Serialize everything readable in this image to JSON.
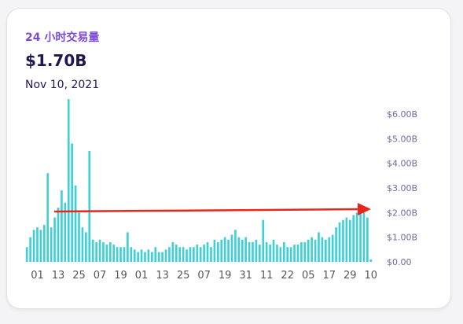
{
  "chart_data": {
    "type": "bar",
    "title": "24 小时交易量",
    "subtitle": "$1.70B",
    "date": "Nov 10, 2021",
    "color": "#3fd0d6",
    "categories": [
      null,
      null,
      null,
      "01",
      null,
      null,
      null,
      null,
      null,
      "13",
      null,
      null,
      null,
      null,
      null,
      "25",
      null,
      null,
      null,
      null,
      null,
      "07",
      null,
      null,
      null,
      null,
      null,
      "19",
      null,
      null,
      null,
      null,
      null,
      "01",
      null,
      null,
      null,
      null,
      null,
      "13",
      null,
      null,
      null,
      null,
      null,
      "25",
      null,
      null,
      null,
      null,
      null,
      "07",
      null,
      null,
      null,
      null,
      null,
      "19",
      null,
      null,
      null,
      null,
      null,
      "31",
      null,
      null,
      null,
      null,
      null,
      "11",
      null,
      null,
      null,
      null,
      null,
      "22",
      null,
      null,
      null,
      null,
      null,
      "05",
      null,
      null,
      null,
      null,
      null,
      "17",
      null,
      null,
      null,
      null,
      null,
      "29",
      null,
      null,
      null,
      null,
      null,
      "10"
    ],
    "values": [
      0.6,
      1.0,
      1.3,
      1.4,
      1.3,
      1.5,
      3.6,
      1.4,
      1.8,
      2.2,
      2.9,
      2.4,
      6.6,
      4.8,
      3.1,
      2.0,
      1.4,
      1.2,
      4.5,
      0.9,
      0.8,
      0.9,
      0.8,
      0.7,
      0.8,
      0.7,
      0.6,
      0.6,
      0.6,
      1.2,
      0.6,
      0.5,
      0.4,
      0.5,
      0.4,
      0.5,
      0.4,
      0.6,
      0.4,
      0.4,
      0.5,
      0.6,
      0.8,
      0.7,
      0.6,
      0.6,
      0.5,
      0.6,
      0.6,
      0.7,
      0.6,
      0.7,
      0.8,
      0.6,
      0.9,
      0.8,
      0.9,
      1.0,
      0.9,
      1.1,
      1.3,
      1.0,
      0.9,
      1.0,
      0.8,
      0.8,
      0.9,
      0.7,
      1.7,
      0.8,
      0.7,
      0.9,
      0.7,
      0.6,
      0.8,
      0.6,
      0.6,
      0.7,
      0.7,
      0.8,
      0.8,
      0.9,
      1.0,
      0.9,
      1.2,
      1.0,
      0.9,
      1.0,
      1.1,
      1.4,
      1.6,
      1.7,
      1.8,
      1.7,
      1.9,
      2.0,
      2.1,
      2.0,
      1.8,
      0.1
    ],
    "ylim": [
      0,
      6.7
    ],
    "yticks": [
      {
        "value": 0,
        "label": "$0.00"
      },
      {
        "value": 1,
        "label": "$1.00B"
      },
      {
        "value": 2,
        "label": "$2.00B"
      },
      {
        "value": 3,
        "label": "$3.00B"
      },
      {
        "value": 4,
        "label": "$4.00B"
      },
      {
        "value": 5,
        "label": "$5.00B"
      },
      {
        "value": 6,
        "label": "$6.00B"
      }
    ]
  }
}
